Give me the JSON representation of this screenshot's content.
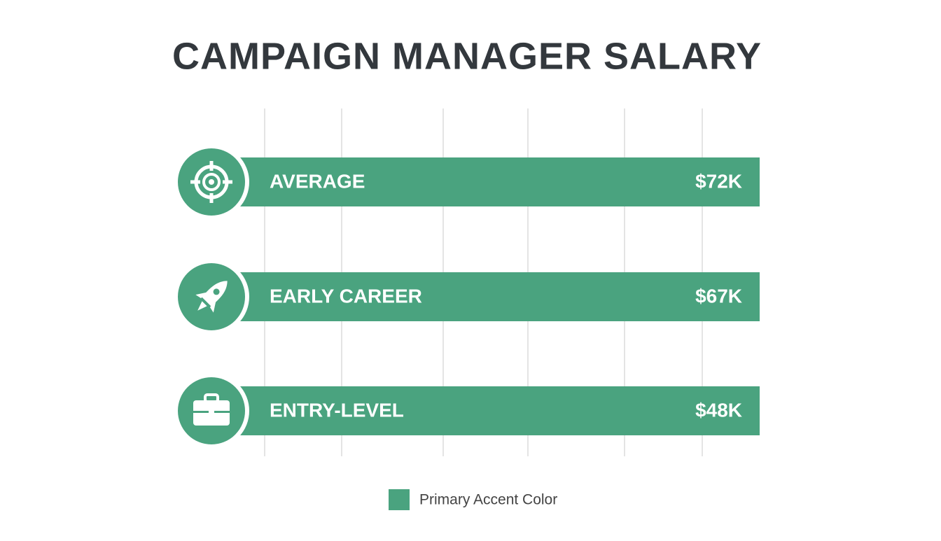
{
  "title": "CAMPAIGN MANAGER SALARY",
  "rows": [
    {
      "label": "AVERAGE",
      "value": "$72K"
    },
    {
      "label": "EARLY CAREER",
      "value": "$67K"
    },
    {
      "label": "ENTRY-LEVEL",
      "value": "$48K"
    }
  ],
  "legend": {
    "label": "Primary Accent Color"
  }
}
